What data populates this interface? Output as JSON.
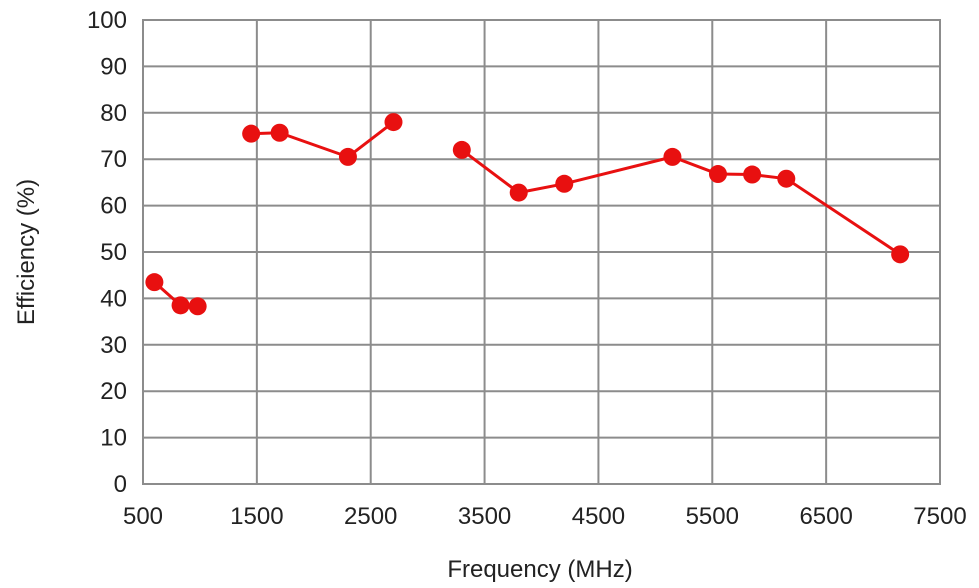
{
  "chart_data": {
    "type": "line",
    "title": "",
    "xlabel": "Frequency (MHz)",
    "ylabel": "Efficiency (%)",
    "xlim": [
      500,
      7500
    ],
    "ylim": [
      0,
      100
    ],
    "x_ticks": [
      500,
      1500,
      2500,
      3500,
      4500,
      5500,
      6500,
      7500
    ],
    "x_tick_labels": [
      "500",
      "1500",
      "2500",
      "3500",
      "4500",
      "5500",
      "6500",
      "7500"
    ],
    "y_ticks": [
      0,
      10,
      20,
      30,
      40,
      50,
      60,
      70,
      80,
      90,
      100
    ],
    "y_tick_labels": [
      "0",
      "10",
      "20",
      "30",
      "40",
      "50",
      "60",
      "70",
      "80",
      "90",
      "100"
    ],
    "grid": true,
    "legend": "none",
    "colors": {
      "series": "#e81010",
      "grid": "#8c8c8c",
      "frame": "#8c8c8c"
    },
    "series": [
      {
        "segments": [
          [
            [
              600,
              43.5
            ],
            [
              830,
              38.5
            ],
            [
              980,
              38.3
            ]
          ],
          [
            [
              1450,
              75.5
            ],
            [
              1700,
              75.7
            ],
            [
              2300,
              70.5
            ],
            [
              2700,
              78
            ]
          ],
          [
            [
              3300,
              72
            ],
            [
              3800,
              62.8
            ],
            [
              4200,
              64.7
            ],
            [
              5150,
              70.5
            ],
            [
              5550,
              66.8
            ],
            [
              5850,
              66.7
            ],
            [
              6150,
              65.8
            ],
            [
              7150,
              49.5
            ]
          ]
        ]
      }
    ]
  }
}
